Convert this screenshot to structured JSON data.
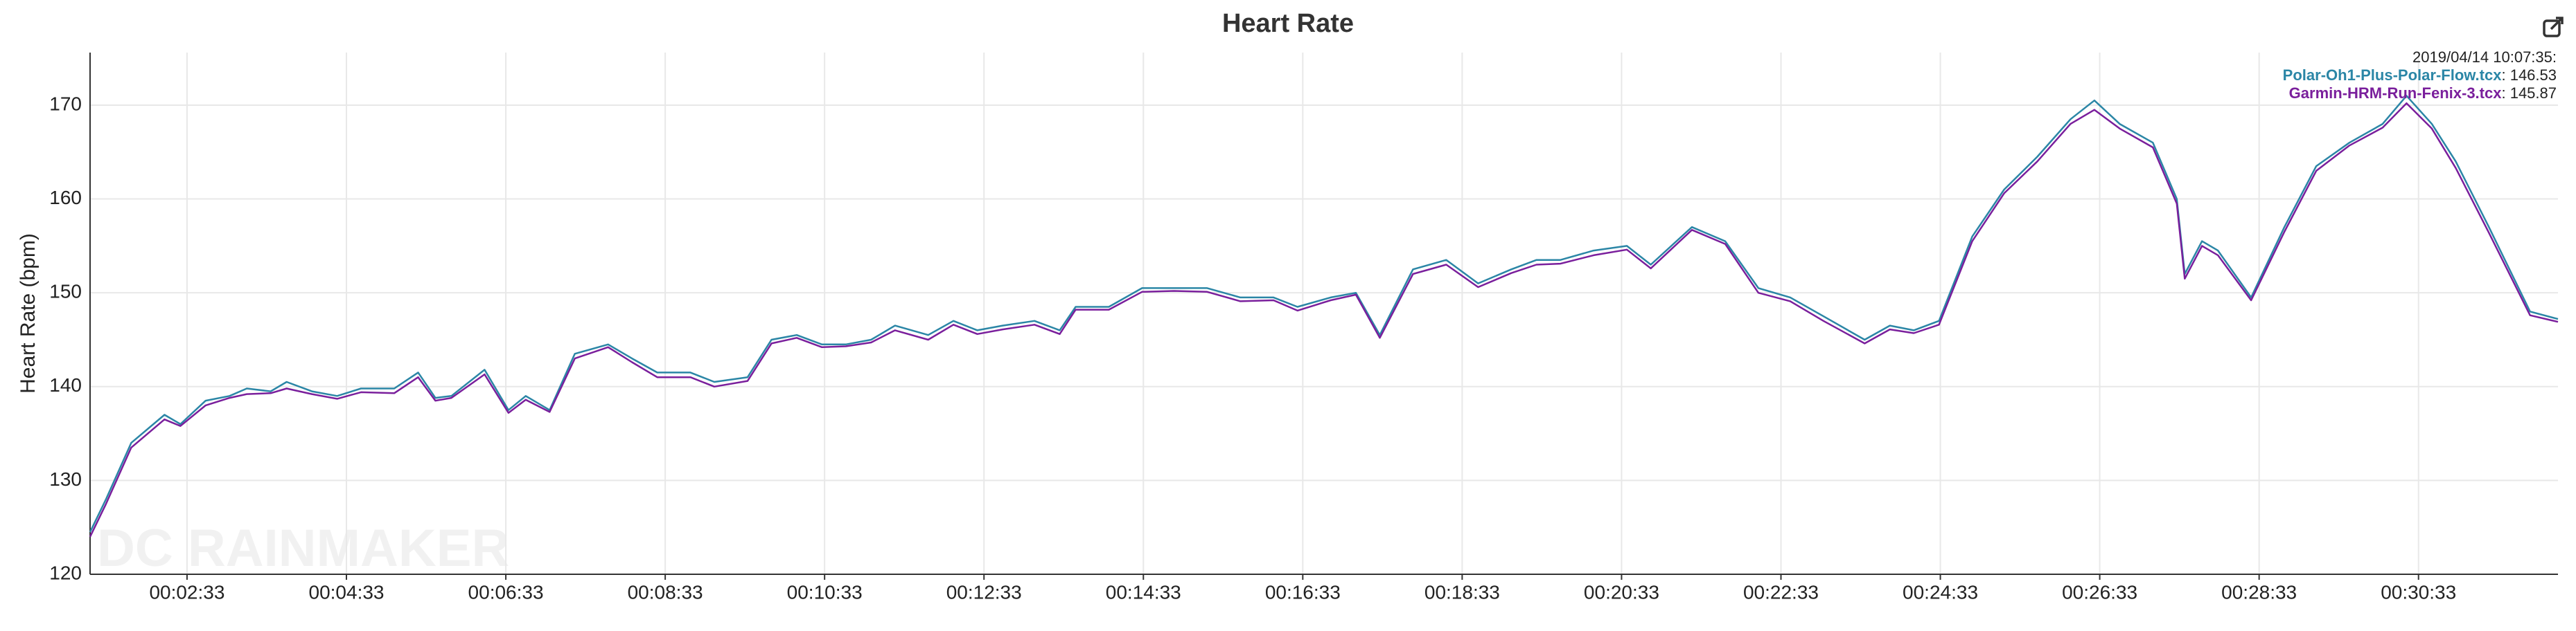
{
  "chart_data": {
    "type": "line",
    "title": "Heart Rate",
    "ylabel": "Heart Rate (bpm)",
    "watermark": "DC RAINMAKER",
    "x": [
      80,
      92,
      111,
      136,
      148,
      167,
      185,
      198,
      216,
      228,
      247,
      266,
      284,
      309,
      327,
      340,
      352,
      377,
      395,
      408,
      426,
      445,
      470,
      488,
      507,
      532,
      550,
      575,
      593,
      612,
      631,
      649,
      668,
      686,
      711,
      730,
      748,
      767,
      791,
      810,
      822,
      847,
      872,
      896,
      921,
      946,
      971,
      989,
      1014,
      1033,
      1051,
      1076,
      1101,
      1125,
      1150,
      1169,
      1187,
      1212,
      1237,
      1255,
      1286,
      1311,
      1336,
      1360,
      1385,
      1416,
      1435,
      1453,
      1472,
      1497,
      1521,
      1546,
      1571,
      1589,
      1608,
      1633,
      1651,
      1657,
      1670,
      1682,
      1707,
      1732,
      1756,
      1781,
      1806,
      1824,
      1843,
      1861,
      1886,
      1917,
      1938
    ],
    "series": [
      {
        "name": "Polar-Oh1-Plus-Polar-Flow.tcx",
        "color": "#2b86a6",
        "values": [
          124.5,
          128,
          134,
          137,
          136,
          138.5,
          139,
          139.8,
          139.5,
          140.5,
          139.5,
          139,
          139.8,
          139.8,
          141.5,
          138.8,
          139,
          141.8,
          137.5,
          139,
          137.5,
          143.5,
          144.5,
          143,
          141.5,
          141.5,
          140.5,
          141,
          145,
          145.5,
          144.5,
          144.5,
          145,
          146.5,
          145.5,
          147,
          146,
          146.5,
          147,
          146,
          148.5,
          148.5,
          150.5,
          150.5,
          150.5,
          149.5,
          149.5,
          148.5,
          149.5,
          150,
          145.5,
          152.5,
          153.5,
          151,
          152.5,
          153.5,
          153.5,
          154.5,
          155,
          153,
          157,
          155.5,
          150.5,
          149.5,
          147.5,
          145,
          146.5,
          146,
          147,
          156,
          161,
          164.5,
          168.5,
          170.5,
          168,
          166,
          160,
          152,
          155.5,
          154.5,
          149.5,
          157,
          163.5,
          166,
          168,
          171,
          168,
          164,
          157,
          148,
          147.2
        ]
      },
      {
        "name": "Garmin-HRM-Run-Fenix-3.tcx",
        "color": "#7a1f9c",
        "values": [
          124,
          127.5,
          133.5,
          136.5,
          135.8,
          138,
          138.8,
          139.2,
          139.3,
          139.8,
          139.2,
          138.7,
          139.4,
          139.3,
          141,
          138.5,
          138.8,
          141.3,
          137.2,
          138.6,
          137.3,
          143,
          144.2,
          142.6,
          141,
          141,
          140,
          140.6,
          144.6,
          145.2,
          144.2,
          144.3,
          144.7,
          146,
          145,
          146.6,
          145.6,
          146.1,
          146.6,
          145.6,
          148.2,
          148.2,
          150.1,
          150.2,
          150.1,
          149.1,
          149.2,
          148.1,
          149.2,
          149.8,
          145.2,
          152,
          153,
          150.6,
          152.1,
          153,
          153.1,
          154,
          154.6,
          152.6,
          156.7,
          155.2,
          150,
          149.1,
          147,
          144.6,
          146.1,
          145.7,
          146.6,
          155.5,
          160.6,
          164,
          168,
          169.5,
          167.5,
          165.5,
          159.5,
          151.5,
          155,
          154,
          149.2,
          156.5,
          163,
          165.7,
          167.6,
          170.2,
          167.5,
          163.3,
          156.4,
          147.6,
          146.9
        ]
      }
    ],
    "xlim": [
      80,
      1938
    ],
    "xticks": [
      {
        "value": 153,
        "label": "00:02:33"
      },
      {
        "value": 273,
        "label": "00:04:33"
      },
      {
        "value": 393,
        "label": "00:06:33"
      },
      {
        "value": 513,
        "label": "00:08:33"
      },
      {
        "value": 633,
        "label": "00:10:33"
      },
      {
        "value": 753,
        "label": "00:12:33"
      },
      {
        "value": 873,
        "label": "00:14:33"
      },
      {
        "value": 993,
        "label": "00:16:33"
      },
      {
        "value": 1113,
        "label": "00:18:33"
      },
      {
        "value": 1233,
        "label": "00:20:33"
      },
      {
        "value": 1353,
        "label": "00:22:33"
      },
      {
        "value": 1473,
        "label": "00:24:33"
      },
      {
        "value": 1593,
        "label": "00:26:33"
      },
      {
        "value": 1713,
        "label": "00:28:33"
      },
      {
        "value": 1833,
        "label": "00:30:33"
      }
    ],
    "ylim": [
      120,
      175.6
    ],
    "yticks": [
      120,
      130,
      140,
      150,
      160,
      170
    ],
    "grid": true,
    "tooltip": {
      "title": "2019/04/14 10:07:35:",
      "values": [
        146.53,
        145.87
      ]
    }
  }
}
